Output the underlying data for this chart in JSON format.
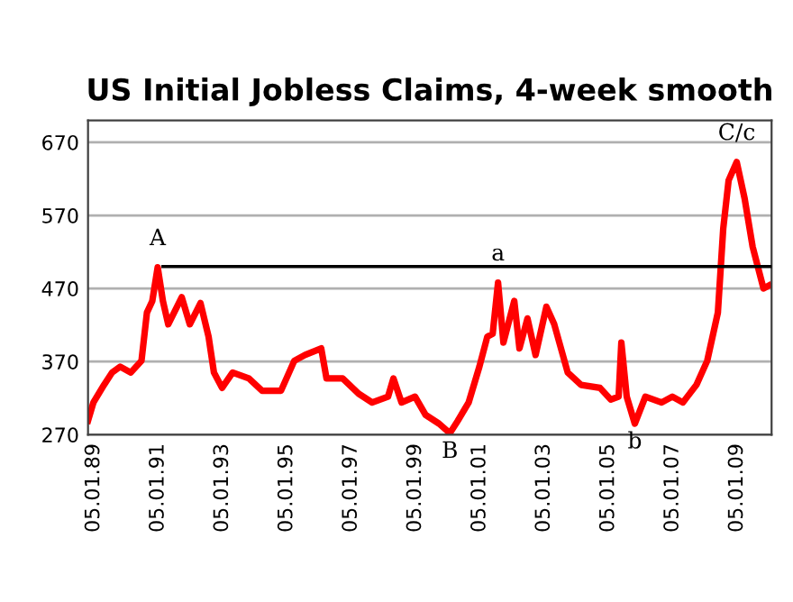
{
  "chart_data": {
    "type": "line",
    "title": "US Initial Jobless Claims, 4-week smooth",
    "x": [
      "1988-11",
      "1989-01",
      "1989-05",
      "1989-08",
      "1989-11",
      "1990-03",
      "1990-07",
      "1990-09",
      "1990-11",
      "1991-01",
      "1991-03",
      "1991-05",
      "1991-10",
      "1992-01",
      "1992-05",
      "1992-08",
      "1992-10",
      "1993-01",
      "1993-05",
      "1993-11",
      "1994-04",
      "1994-11",
      "1995-04",
      "1995-08",
      "1996-02",
      "1996-04",
      "1996-10",
      "1997-04",
      "1997-09",
      "1998-03",
      "1998-05",
      "1998-08",
      "1999-01",
      "1999-05",
      "1999-10",
      "2000-02",
      "2000-05",
      "2000-09",
      "2001-01",
      "2001-04",
      "2001-06",
      "2001-08",
      "2001-10",
      "2002-02",
      "2002-04",
      "2002-07",
      "2002-10",
      "2003-02",
      "2003-05",
      "2003-10",
      "2004-03",
      "2004-10",
      "2005-02",
      "2005-05",
      "2005-06",
      "2005-08",
      "2005-11",
      "2006-03",
      "2006-09",
      "2007-01",
      "2007-05",
      "2007-10",
      "2008-02",
      "2008-06",
      "2008-08",
      "2008-10",
      "2009-01",
      "2009-04",
      "2009-07",
      "2009-11",
      "2010-01"
    ],
    "series": [
      {
        "color": "#ff0000",
        "values": [
          289,
          314,
          338,
          355,
          363,
          355,
          371,
          437,
          453,
          499,
          453,
          421,
          458,
          421,
          450,
          404,
          355,
          334,
          355,
          347,
          330,
          330,
          371,
          379,
          388,
          347,
          347,
          326,
          314,
          322,
          347,
          314,
          322,
          297,
          285,
          272,
          289,
          314,
          363,
          404,
          408,
          478,
          396,
          453,
          388,
          429,
          379,
          445,
          421,
          355,
          338,
          334,
          318,
          322,
          396,
          322,
          285,
          322,
          314,
          322,
          314,
          338,
          371,
          437,
          552,
          618,
          643,
          593,
          527,
          470,
          474
        ]
      },
      {
        "color": "#000000",
        "x": [
          "1991-03",
          "2010-02"
        ],
        "values": [
          500,
          500
        ]
      }
    ],
    "xlim": [
      "1988-11",
      "2010-02"
    ],
    "xticks": [
      {
        "value": "1989-01-05",
        "label": "05.01.89"
      },
      {
        "value": "1991-01-05",
        "label": "05.01.91"
      },
      {
        "value": "1993-01-05",
        "label": "05.01.93"
      },
      {
        "value": "1995-01-05",
        "label": "05.01.95"
      },
      {
        "value": "1997-01-05",
        "label": "05.01.97"
      },
      {
        "value": "1999-01-05",
        "label": "05.01.99"
      },
      {
        "value": "2001-01-05",
        "label": "05.01.01"
      },
      {
        "value": "2003-01-05",
        "label": "05.01.03"
      },
      {
        "value": "2005-01-05",
        "label": "05.01.05"
      },
      {
        "value": "2007-01-05",
        "label": "05.01.07"
      },
      {
        "value": "2009-01-05",
        "label": "05.01.09"
      }
    ],
    "ylim": [
      270,
      700
    ],
    "yticks": [
      270,
      370,
      470,
      570,
      670
    ],
    "grid": "y",
    "annotations": [
      {
        "text": "A",
        "x": "1991-01",
        "y": 499
      },
      {
        "text": "B",
        "x": "2000-02",
        "y": 272
      },
      {
        "text": "a",
        "x": "2001-08",
        "y": 478
      },
      {
        "text": "b",
        "x": "2005-11",
        "y": 285
      },
      {
        "text": "C/c",
        "x": "2009-01",
        "y": 643
      }
    ]
  }
}
